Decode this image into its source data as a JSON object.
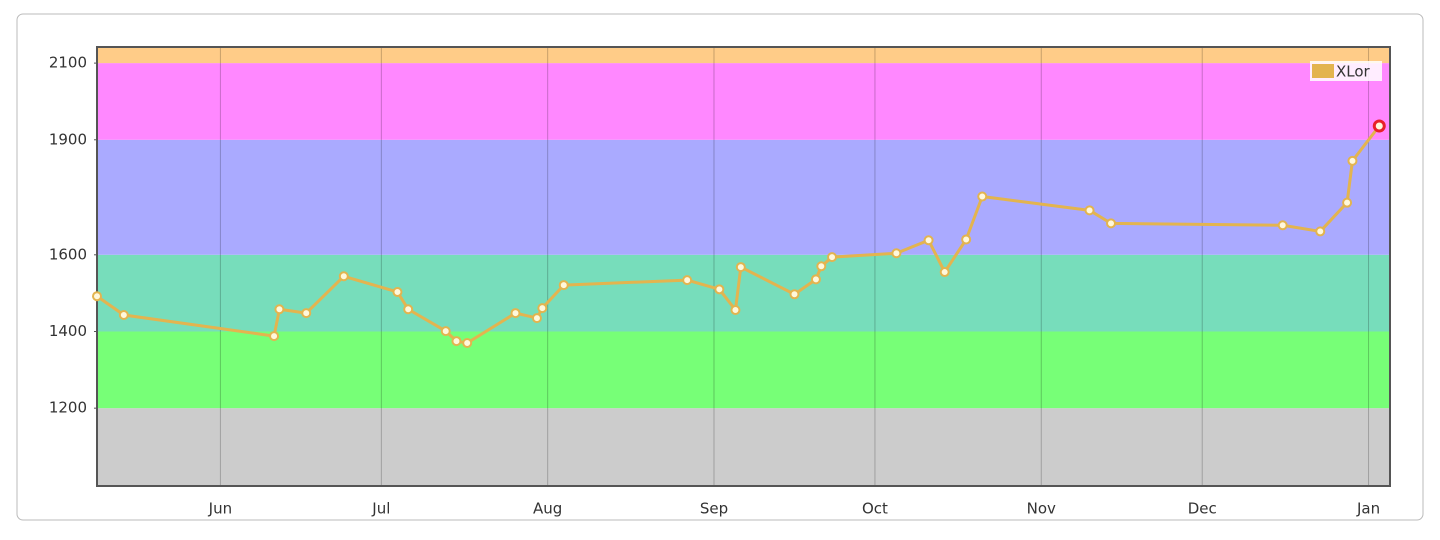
{
  "chart_data": {
    "type": "line",
    "x": [
      -23,
      -18,
      10,
      11,
      16,
      23,
      33,
      35,
      42,
      44,
      46,
      55,
      59,
      60,
      64,
      87,
      93,
      96,
      97,
      107,
      111,
      112,
      114,
      126,
      132,
      135,
      139,
      142,
      162,
      166,
      198,
      205,
      210,
      211,
      216
    ],
    "series": [
      {
        "name": "XLor",
        "color": "#e3b44f",
        "values": [
          1492,
          1443,
          1388,
          1458,
          1448,
          1544,
          1503,
          1458,
          1401,
          1375,
          1370,
          1448,
          1435,
          1461,
          1521,
          1534,
          1510,
          1456,
          1568,
          1497,
          1536,
          1570,
          1594,
          1604,
          1638,
          1555,
          1640,
          1752,
          1716,
          1682,
          1677,
          1661,
          1736,
          1845,
          1936
        ]
      }
    ],
    "highlight_last_color": "#e8202a",
    "xlim": [
      -23,
      218
    ],
    "xticks": [
      {
        "value": 0,
        "label": "Jun"
      },
      {
        "value": 30,
        "label": "Jul"
      },
      {
        "value": 61,
        "label": "Aug"
      },
      {
        "value": 92,
        "label": "Sep"
      },
      {
        "value": 122,
        "label": "Oct"
      },
      {
        "value": 153,
        "label": "Nov"
      },
      {
        "value": 183,
        "label": "Dec"
      },
      {
        "value": 214,
        "label": "Jan"
      }
    ],
    "ylim": [
      997,
      2142
    ],
    "yticks": [
      1200,
      1400,
      1600,
      1900,
      2100
    ],
    "bands": [
      {
        "from": 997,
        "to": 1200,
        "color": "#cccccc"
      },
      {
        "from": 1200,
        "to": 1400,
        "color": "#77ff77"
      },
      {
        "from": 1400,
        "to": 1600,
        "color": "#77ddbb"
      },
      {
        "from": 1600,
        "to": 1900,
        "color": "#aaaaff"
      },
      {
        "from": 1900,
        "to": 2100,
        "color": "#ff88ff"
      },
      {
        "from": 2100,
        "to": 2142,
        "color": "#ffcc88"
      }
    ],
    "grid": true,
    "legend": "top-right"
  }
}
